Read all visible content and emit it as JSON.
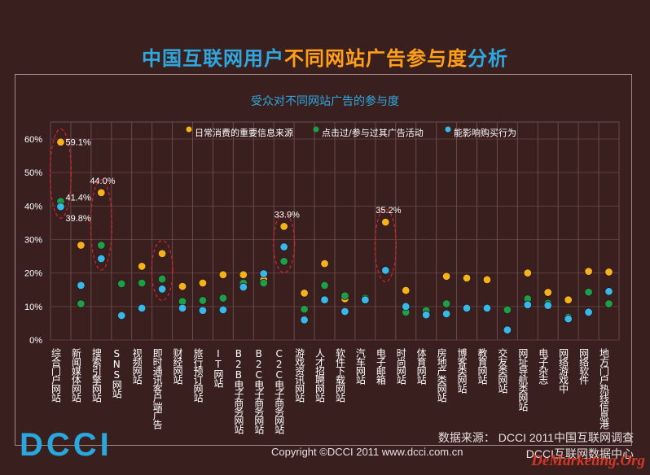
{
  "title": {
    "part1": "中国互联网用户",
    "part2": "不同网站广告参与度",
    "part3": "分析"
  },
  "footer": {
    "source": "数据来源： DCCI 2011中国互联网调查",
    "copyright": "Copyright ©DCCI 2011 www.dcci.com.cn",
    "center": "DCCI互联网数据中心",
    "logo_text": "DCCI",
    "watermark": "DeMarketing.Org"
  },
  "colors": {
    "orange": "#f6b21b",
    "green": "#1e9e48",
    "blue": "#38b8e8",
    "title_blue": "#2fa8e0",
    "title_orange": "#ff9f1a"
  },
  "chart_data": {
    "type": "scatter",
    "title": "受众对不同网站广告的参与度",
    "ylim": [
      0,
      60
    ],
    "yticks": [
      "0%",
      "10%",
      "20%",
      "30%",
      "40%",
      "50%",
      "60%"
    ],
    "legend_position": "top",
    "grid": true,
    "categories": [
      "综合门户网站",
      "新闻媒体网站",
      "搜索引擎网站",
      "SNS网站",
      "视频网站",
      "即时通讯客户端广告",
      "财经网站",
      "旅行预订网站",
      "IT网站",
      "B2B电子商务网站",
      "B2C电子商务网站",
      "C2C电子商务网站",
      "游戏资讯网站",
      "人才招聘网站",
      "软件下载网站",
      "汽车网站",
      "电子邮箱",
      "时尚网站",
      "体育网站",
      "房地产类网站",
      "博客类网站",
      "教育网站",
      "交友类网站",
      "网址导航类网站",
      "电子杂志",
      "网络游戏中",
      "网络软件",
      "地方门户热线信息港"
    ],
    "series": [
      {
        "name": "日常消费的重要信息来源",
        "color": "#f6b21b",
        "values": [
          59.1,
          28.3,
          44.0,
          17.0,
          22.0,
          25.8,
          16.0,
          17.0,
          19.5,
          19.5,
          18.0,
          33.9,
          14.0,
          22.8,
          12.3,
          12.5,
          35.2,
          14.8,
          8.0,
          19.0,
          18.5,
          18.0,
          9.0,
          20.0,
          14.2,
          12.0,
          20.5,
          20.3
        ]
      },
      {
        "name": "点击过/参与过其广告活动",
        "color": "#1e9e48",
        "values": [
          41.4,
          10.8,
          28.3,
          16.8,
          17.0,
          18.2,
          11.5,
          11.8,
          12.5,
          17.0,
          17.0,
          23.5,
          9.2,
          16.3,
          13.2,
          12.5,
          21.0,
          8.3,
          8.8,
          10.8,
          9.5,
          9.5,
          9.0,
          12.3,
          11.0,
          6.8,
          14.3,
          10.8
        ]
      },
      {
        "name": "能影响购买行为",
        "color": "#38b8e8",
        "values": [
          39.8,
          16.3,
          24.3,
          7.3,
          9.5,
          15.2,
          9.5,
          8.8,
          9.0,
          15.8,
          19.8,
          27.8,
          6.0,
          12.0,
          8.5,
          12.0,
          20.8,
          10.0,
          7.5,
          7.8,
          9.5,
          9.5,
          3.0,
          10.5,
          10.3,
          6.3,
          8.3,
          14.5
        ]
      }
    ],
    "annotations": [
      {
        "category_index": 0,
        "series_index": 0,
        "label": "59.1%"
      },
      {
        "category_index": 0,
        "series_index": 1,
        "label": "41.4%"
      },
      {
        "category_index": 0,
        "series_index": 2,
        "label": "39.8%"
      },
      {
        "category_index": 2,
        "series_index": 0,
        "label": "44.0%"
      },
      {
        "category_index": 11,
        "series_index": 0,
        "label": "33.9%"
      },
      {
        "category_index": 16,
        "series_index": 0,
        "label": "35.2%"
      }
    ],
    "highlighted_categories": [
      0,
      2,
      5,
      11,
      16
    ]
  }
}
